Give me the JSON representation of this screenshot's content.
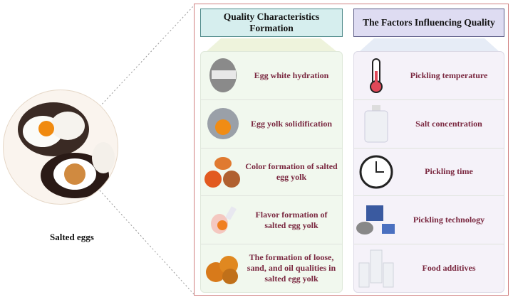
{
  "left_caption": "Salted eggs",
  "quality": {
    "title": "Quality Characteristics Formation",
    "items": [
      {
        "label": "Egg white hydration",
        "icon": "egg-white-photo-icon"
      },
      {
        "label": "Egg yolk solidification",
        "icon": "egg-yolk-photo-icon"
      },
      {
        "label": "Color formation of salted egg yolk",
        "icon": "yolk-color-photo-icon"
      },
      {
        "label": "Flavor formation of salted egg yolk",
        "icon": "mouth-flavor-icon"
      },
      {
        "label": "The formation of loose, sand, and oil qualities in salted egg yolk",
        "icon": "yolks-photo-icon"
      }
    ]
  },
  "factors": {
    "title": "The Factors Influencing Quality",
    "items": [
      {
        "label": "Pickling temperature",
        "icon": "thermometer-icon"
      },
      {
        "label": "Salt concentration",
        "icon": "salt-bottle-icon"
      },
      {
        "label": "Pickling time",
        "icon": "clock-icon"
      },
      {
        "label": "Pickling technology",
        "icon": "equipment-icon"
      },
      {
        "label": "Food additives",
        "icon": "additive-bottles-icon"
      }
    ]
  },
  "colors": {
    "border": "#d08080",
    "teal": "#d6eeee",
    "lavender": "#dedcf2",
    "label": "#7a2840"
  }
}
